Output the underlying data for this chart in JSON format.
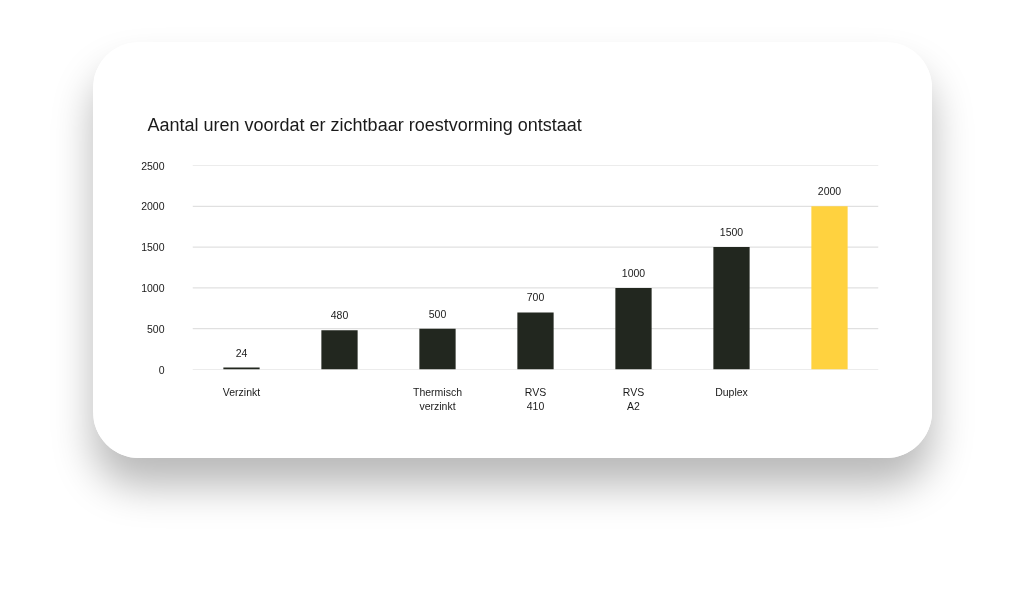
{
  "chart_data": {
    "type": "bar",
    "title": "Aantal uren voordat er zichtbaar roestvorming ontstaat",
    "categories": [
      "Verzinkt",
      null,
      "Thermisch\nverzinkt",
      "RVS\n410",
      "RVS\nA2",
      "Duplex",
      null
    ],
    "values": [
      24,
      480,
      500,
      700,
      1000,
      1500,
      2000
    ],
    "colors": [
      "#22271f",
      "#22271f",
      "#22271f",
      "#22271f",
      "#22271f",
      "#22271f",
      "#ffd23f"
    ],
    "ylim": [
      0,
      2500
    ],
    "yticks": [
      0,
      500,
      1000,
      1500,
      2000,
      2500
    ],
    "grid": "y",
    "data_labels": true
  }
}
